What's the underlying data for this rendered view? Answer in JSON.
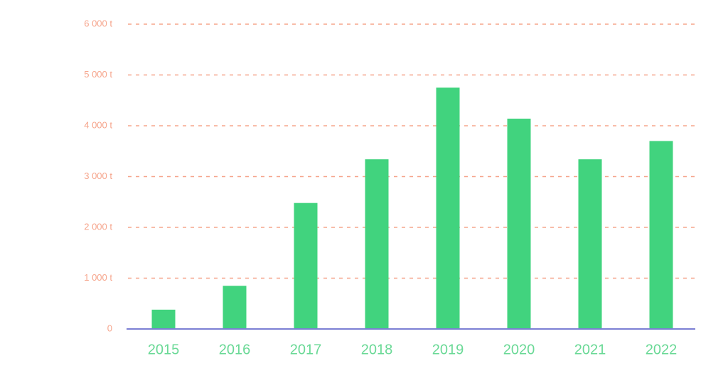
{
  "chart_data": {
    "type": "bar",
    "categories": [
      "2015",
      "2016",
      "2017",
      "2018",
      "2019",
      "2020",
      "2021",
      "2022"
    ],
    "values": [
      380,
      850,
      2480,
      3340,
      4750,
      4140,
      3340,
      3700
    ],
    "color": "#41d37e",
    "ylim": [
      0,
      6000
    ],
    "yticks": [
      0,
      {
        "value": 1000,
        "label": "1 000 t"
      },
      {
        "value": 2000,
        "label": "2 000 t"
      },
      {
        "value": 3000,
        "label": "3 000 t"
      },
      {
        "value": 4000,
        "label": "4 000 t"
      },
      {
        "value": 5000,
        "label": "5 000 t"
      },
      {
        "value": 6000,
        "label": "6 000 t"
      }
    ],
    "grid": true
  }
}
